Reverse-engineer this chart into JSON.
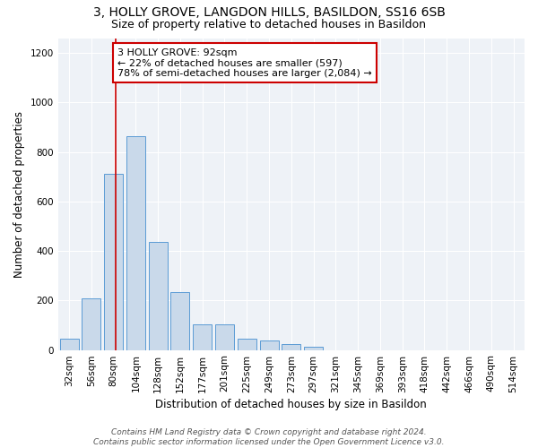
{
  "title_line1": "3, HOLLY GROVE, LANGDON HILLS, BASILDON, SS16 6SB",
  "title_line2": "Size of property relative to detached houses in Basildon",
  "xlabel": "Distribution of detached houses by size in Basildon",
  "ylabel": "Number of detached properties",
  "bar_color": "#c9d9ea",
  "bar_edge_color": "#5b9bd5",
  "bar_categories": [
    "32sqm",
    "56sqm",
    "80sqm",
    "104sqm",
    "128sqm",
    "152sqm",
    "177sqm",
    "201sqm",
    "225sqm",
    "249sqm",
    "273sqm",
    "297sqm",
    "321sqm",
    "345sqm",
    "369sqm",
    "393sqm",
    "418sqm",
    "442sqm",
    "466sqm",
    "490sqm",
    "514sqm"
  ],
  "bar_values": [
    47,
    210,
    710,
    865,
    438,
    232,
    105,
    105,
    47,
    37,
    22,
    12,
    0,
    0,
    0,
    0,
    0,
    0,
    0,
    0,
    0
  ],
  "ylim": [
    0,
    1260
  ],
  "yticks": [
    0,
    200,
    400,
    600,
    800,
    1000,
    1200
  ],
  "annotation_text": "3 HOLLY GROVE: 92sqm\n← 22% of detached houses are smaller (597)\n78% of semi-detached houses are larger (2,084) →",
  "vline_x": 2.08,
  "vline_color": "#cc0000",
  "annotation_box_color": "#cc0000",
  "background_color": "#eef2f7",
  "footer_line1": "Contains HM Land Registry data © Crown copyright and database right 2024.",
  "footer_line2": "Contains public sector information licensed under the Open Government Licence v3.0.",
  "title_fontsize": 10,
  "subtitle_fontsize": 9,
  "annotation_fontsize": 8,
  "axis_label_fontsize": 8.5,
  "tick_fontsize": 7.5,
  "footer_fontsize": 6.5
}
